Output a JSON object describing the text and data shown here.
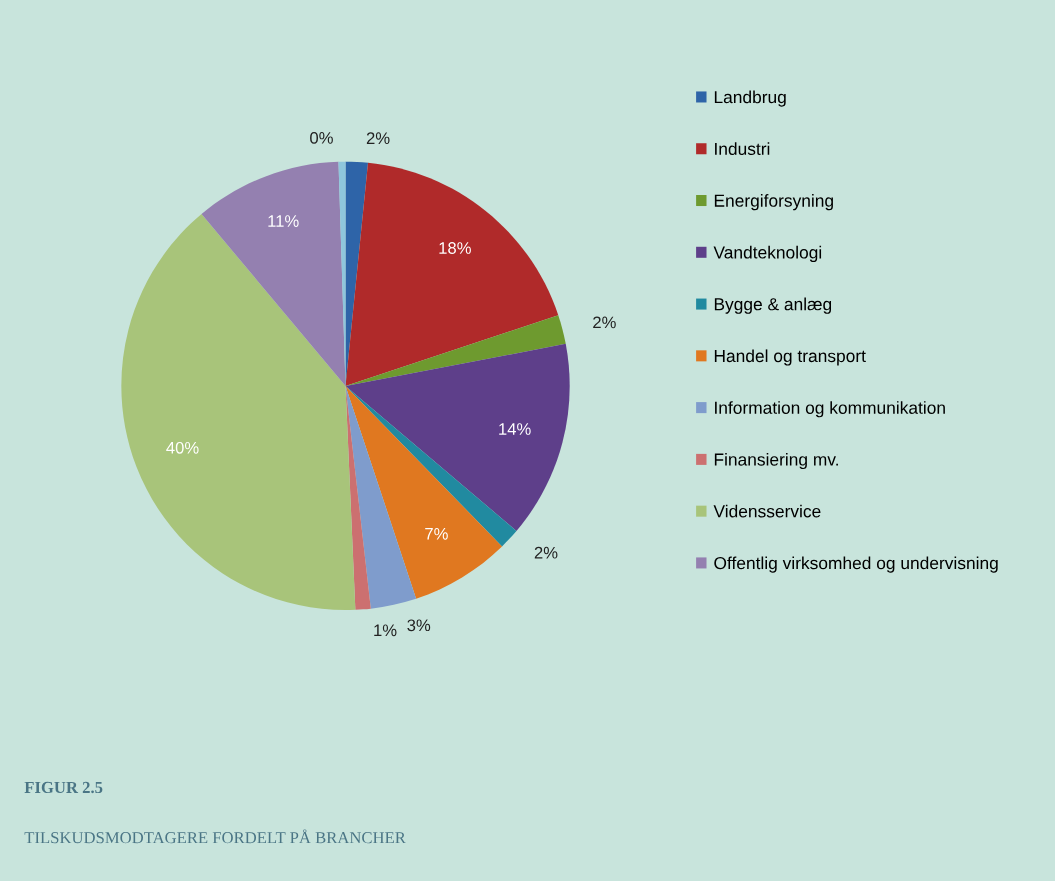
{
  "chart_data": {
    "type": "pie",
    "title": "FIGUR 2.5",
    "subtitle": "TILSKUDSMODTAGERE FORDELT PÅ BRANCHER",
    "categories": [
      "Landbrug",
      "Industri",
      "Energiforsyning",
      "Vandteknologi",
      "Bygge & anlæg",
      "Handel og transport",
      "Information og kommunikation",
      "Finansiering mv.",
      "Vidensservice",
      "Offentlig virksomhed og undervisning",
      null
    ],
    "values": [
      1.6,
      18.3,
      2.1,
      14.2,
      1.5,
      7.2,
      3.3,
      1.1,
      39.6,
      10.6,
      0.5
    ],
    "value_labels": [
      "2%",
      "18%",
      "2%",
      "14%",
      "2%",
      "7%",
      "3%",
      "1%",
      "40%",
      "11%",
      "0%"
    ],
    "colors": [
      "#2e64a8",
      "#b02a2a",
      "#6e9a2f",
      "#5e3f8a",
      "#218aa0",
      "#e07820",
      "#7f9ccc",
      "#cc7070",
      "#a8c47a",
      "#9480b0",
      "#8fc6dc"
    ],
    "legend": "right"
  }
}
